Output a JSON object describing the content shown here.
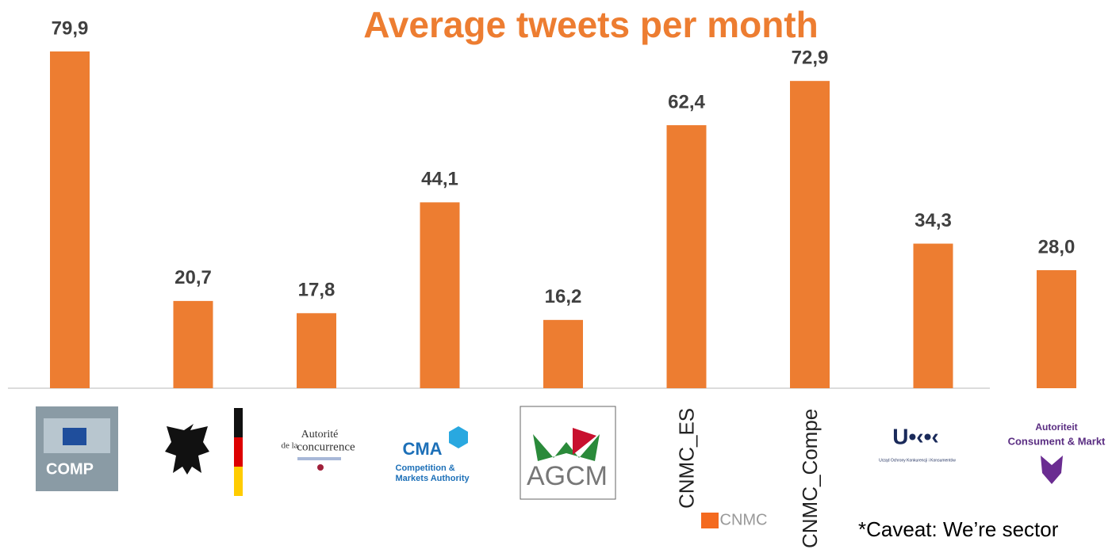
{
  "chart_data": {
    "type": "bar",
    "title": "Average tweets per month",
    "categories": [
      null,
      null,
      null,
      null,
      null,
      "CNMC_ES",
      "CNMC_Compe",
      null,
      null
    ],
    "values": [
      79.9,
      20.7,
      17.8,
      44.1,
      16.2,
      62.4,
      72.9,
      34.3,
      28.0
    ],
    "value_labels": [
      "79,9",
      "20,7",
      "17,8",
      "44,1",
      "16,2",
      "62,4",
      "72,9",
      "34,3",
      "28,0"
    ],
    "color": "#ed7d31",
    "ylim": [
      0,
      80
    ],
    "logos": [
      [
        "COMP"
      ],
      [],
      [
        "Autorité",
        "de la",
        "concurrence"
      ],
      [
        "CMA",
        "Competition &",
        "Markets Authority"
      ],
      [
        "AGCM"
      ],
      [
        "CNMC"
      ],
      [],
      [
        "U•‹•‹",
        "Urząd Ochrony Konkurencji i Konsumentów"
      ],
      [
        "Autoriteit",
        "Consument & Markt"
      ]
    ],
    "annotation": "*Caveat: We’re sector"
  }
}
